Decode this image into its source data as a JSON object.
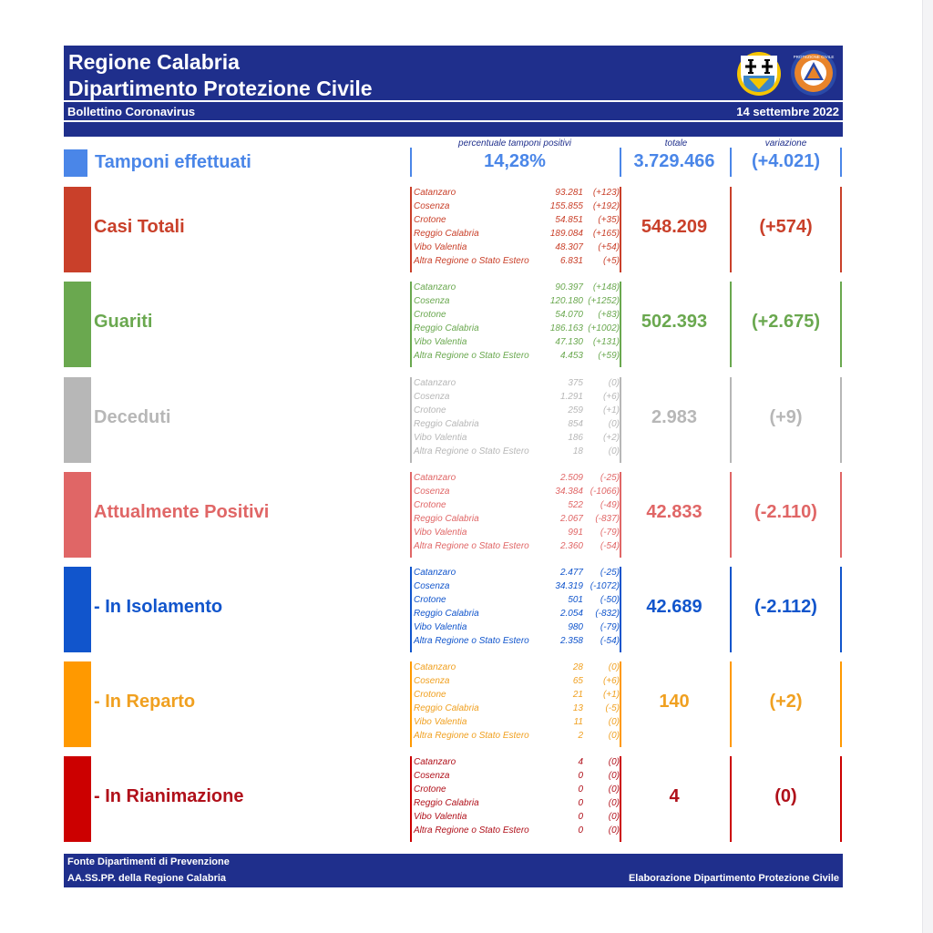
{
  "header": {
    "title_line1": "Regione Calabria",
    "title_line2": "Dipartimento Protezione Civile",
    "subtitle": "Bollettino Coronavirus",
    "date": "14 settembre 2022",
    "logo2_text": "PROTEZIONE CIVILE"
  },
  "columns": {
    "pct": "percentuale tamponi positivi",
    "total": "totale",
    "variation": "variazione"
  },
  "tamponi": {
    "label": "Tamponi effettuati",
    "pct": "14,28%",
    "total": "3.729.466",
    "variation": "(+4.021)",
    "color": "#4a86e8"
  },
  "sections": [
    {
      "label": "Casi Totali",
      "color": "#c9402a",
      "text_color": "#c9402a",
      "total": "548.209",
      "variation": "(+574)",
      "rows": [
        {
          "name": "Catanzaro",
          "value": "93.281",
          "delta": "(+123)"
        },
        {
          "name": "Cosenza",
          "value": "155.855",
          "delta": "(+192)"
        },
        {
          "name": "Crotone",
          "value": "54.851",
          "delta": "(+35)"
        },
        {
          "name": "Reggio Calabria",
          "value": "189.084",
          "delta": "(+165)"
        },
        {
          "name": "Vibo Valentia",
          "value": "48.307",
          "delta": "(+54)"
        },
        {
          "name": "Altra Regione o Stato Estero",
          "value": "6.831",
          "delta": "(+5)"
        }
      ]
    },
    {
      "label": "Guariti",
      "color": "#6aa84f",
      "text_color": "#6aa84f",
      "total": "502.393",
      "variation": "(+2.675)",
      "rows": [
        {
          "name": "Catanzaro",
          "value": "90.397",
          "delta": "(+148)"
        },
        {
          "name": "Cosenza",
          "value": "120.180",
          "delta": "(+1252)"
        },
        {
          "name": "Crotone",
          "value": "54.070",
          "delta": "(+83)"
        },
        {
          "name": "Reggio Calabria",
          "value": "186.163",
          "delta": "(+1002)"
        },
        {
          "name": "Vibo Valentia",
          "value": "47.130",
          "delta": "(+131)"
        },
        {
          "name": "Altra Regione o Stato Estero",
          "value": "4.453",
          "delta": "(+59)"
        }
      ]
    },
    {
      "label": "Deceduti",
      "color": "#b7b7b7",
      "text_color": "#b7b7b7",
      "total": "2.983",
      "variation": "(+9)",
      "rows": [
        {
          "name": "Catanzaro",
          "value": "375",
          "delta": "(0)"
        },
        {
          "name": "Cosenza",
          "value": "1.291",
          "delta": "(+6)"
        },
        {
          "name": "Crotone",
          "value": "259",
          "delta": "(+1)"
        },
        {
          "name": "Reggio Calabria",
          "value": "854",
          "delta": "(0)"
        },
        {
          "name": "Vibo Valentia",
          "value": "186",
          "delta": "(+2)"
        },
        {
          "name": "Altra Regione o Stato Estero",
          "value": "18",
          "delta": "(0)"
        }
      ]
    },
    {
      "label": "Attualmente Positivi",
      "color": "#e06666",
      "text_color": "#e06666",
      "total": "42.833",
      "variation": "(-2.110)",
      "rows": [
        {
          "name": "Catanzaro",
          "value": "2.509",
          "delta": "(-25)"
        },
        {
          "name": "Cosenza",
          "value": "34.384",
          "delta": "(-1066)"
        },
        {
          "name": "Crotone",
          "value": "522",
          "delta": "(-49)"
        },
        {
          "name": "Reggio Calabria",
          "value": "2.067",
          "delta": "(-837)"
        },
        {
          "name": "Vibo Valentia",
          "value": "991",
          "delta": "(-79)"
        },
        {
          "name": "Altra Regione o Stato Estero",
          "value": "2.360",
          "delta": "(-54)"
        }
      ]
    },
    {
      "label": "- In Isolamento",
      "color": "#1155cc",
      "text_color": "#1155cc",
      "total": "42.689",
      "variation": "(-2.112)",
      "rows": [
        {
          "name": "Catanzaro",
          "value": "2.477",
          "delta": "(-25)"
        },
        {
          "name": "Cosenza",
          "value": "34.319",
          "delta": "(-1072)"
        },
        {
          "name": "Crotone",
          "value": "501",
          "delta": "(-50)"
        },
        {
          "name": "Reggio Calabria",
          "value": "2.054",
          "delta": "(-832)"
        },
        {
          "name": "Vibo Valentia",
          "value": "980",
          "delta": "(-79)"
        },
        {
          "name": "Altra Regione o Stato Estero",
          "value": "2.358",
          "delta": "(-54)"
        }
      ]
    },
    {
      "label": "- In Reparto",
      "color": "#ff9900",
      "text_color": "#f0a020",
      "total": "140",
      "variation": "(+2)",
      "rows": [
        {
          "name": "Catanzaro",
          "value": "28",
          "delta": "(0)"
        },
        {
          "name": "Cosenza",
          "value": "65",
          "delta": "(+6)"
        },
        {
          "name": "Crotone",
          "value": "21",
          "delta": "(+1)"
        },
        {
          "name": "Reggio Calabria",
          "value": "13",
          "delta": "(-5)"
        },
        {
          "name": "Vibo Valentia",
          "value": "11",
          "delta": "(0)"
        },
        {
          "name": "Altra Regione o Stato Estero",
          "value": "2",
          "delta": "(0)"
        }
      ]
    },
    {
      "label": "- In Rianimazione",
      "color": "#cc0000",
      "text_color": "#b0101a",
      "total": "4",
      "variation": "(0)",
      "rows": [
        {
          "name": "Catanzaro",
          "value": "4",
          "delta": "(0)"
        },
        {
          "name": "Cosenza",
          "value": "0",
          "delta": "(0)"
        },
        {
          "name": "Crotone",
          "value": "0",
          "delta": "(0)"
        },
        {
          "name": "Reggio Calabria",
          "value": "0",
          "delta": "(0)"
        },
        {
          "name": "Vibo Valentia",
          "value": "0",
          "delta": "(0)"
        },
        {
          "name": "Altra Regione o Stato Estero",
          "value": "0",
          "delta": "(0)"
        }
      ]
    }
  ],
  "footer": {
    "line1": "Fonte Dipartimenti di Prevenzione",
    "line2": "AA.SS.PP.  della Regione Calabria",
    "right": "Elaborazione Dipartimento Protezione Civile"
  }
}
